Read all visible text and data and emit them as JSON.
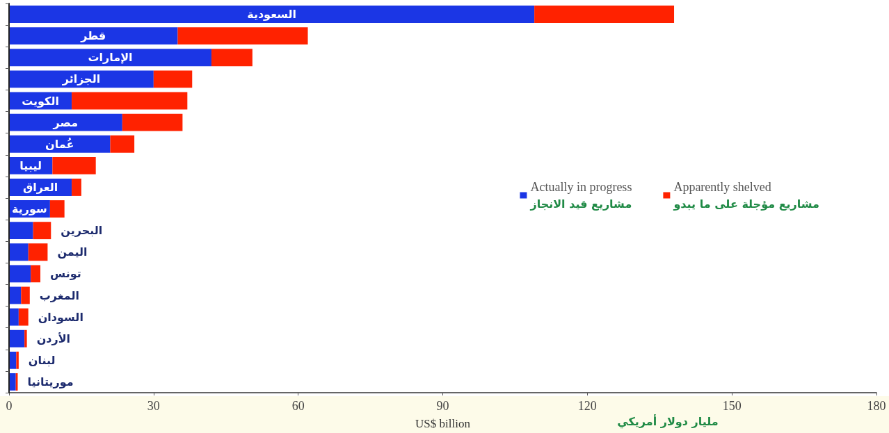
{
  "chart_data": {
    "type": "bar",
    "orientation": "horizontal",
    "stacked": true,
    "categories": [
      "السعودية",
      "قطر",
      "الإمارات",
      "الجزائر",
      "الكويت",
      "مصر",
      "عُمان",
      "ليبيا",
      "العراق",
      "سورية",
      "البحرين",
      "اليمن",
      "تونس",
      "المغرب",
      "السودان",
      "الأردن",
      "لبنان",
      "موريتانيا"
    ],
    "series": [
      {
        "name": "Actually in progress\nمشاريع قيد الانجاز",
        "color": "#1b36e5",
        "values": [
          109,
          35,
          42,
          30,
          13,
          23.5,
          21,
          9,
          13,
          8.5,
          5,
          4,
          4.5,
          2.5,
          2,
          3.2,
          1.5,
          1.4
        ]
      },
      {
        "name": "Apparently shelved\nمشاريع مؤجلة على ما يبدو",
        "color": "#ff2200",
        "values": [
          29,
          27,
          8.5,
          8,
          24,
          12.5,
          5,
          9,
          2,
          3,
          3.7,
          4,
          2,
          1.8,
          2,
          0.5,
          0.5,
          0.4
        ]
      }
    ],
    "xlim": [
      0,
      180
    ],
    "xticks": [
      0,
      30,
      60,
      90,
      120,
      150,
      180
    ],
    "xlabel": "US$ billion",
    "annotations": [
      "مليار دولار أمريكي"
    ],
    "legend": "right",
    "grid": false
  }
}
